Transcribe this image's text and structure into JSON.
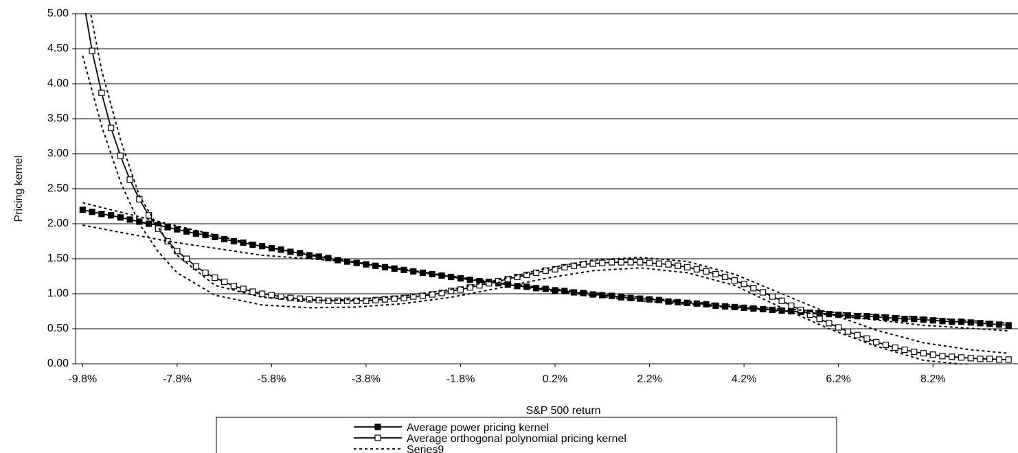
{
  "chart_data": {
    "type": "line",
    "x_label": "S&P 500 return",
    "y_label": "Pricing kernel",
    "xlim": [
      -9.95,
      10.0
    ],
    "ylim": [
      0,
      5
    ],
    "xticks": [
      {
        "value": -9.8,
        "label": "-9.8%"
      },
      {
        "value": -7.8,
        "label": "-7.8%"
      },
      {
        "value": -5.8,
        "label": "-5.8%"
      },
      {
        "value": -3.8,
        "label": "-3.8%"
      },
      {
        "value": -1.8,
        "label": "-1.8%"
      },
      {
        "value": 0.2,
        "label": "0.2%"
      },
      {
        "value": 2.2,
        "label": "2.2%"
      },
      {
        "value": 4.2,
        "label": "4.2%"
      },
      {
        "value": 6.2,
        "label": "6.2%"
      },
      {
        "value": 8.2,
        "label": "8.2%"
      }
    ],
    "yticks": [
      {
        "value": 0,
        "label": "0.00"
      },
      {
        "value": 0.5,
        "label": "0.50"
      },
      {
        "value": 1,
        "label": "1.00"
      },
      {
        "value": 1.5,
        "label": "1.50"
      },
      {
        "value": 2,
        "label": "2.00"
      },
      {
        "value": 2.5,
        "label": "2.50"
      },
      {
        "value": 3,
        "label": "3.00"
      },
      {
        "value": 3.5,
        "label": "3.50"
      },
      {
        "value": 4,
        "label": "4.00"
      },
      {
        "value": 4.5,
        "label": "4.50"
      },
      {
        "value": 5,
        "label": "5.00"
      }
    ],
    "grid": true,
    "x": [
      -9.8,
      -9.6,
      -9.4,
      -9.2,
      -9.0,
      -8.8,
      -8.6,
      -8.4,
      -8.2,
      -8.0,
      -7.8,
      -7.6,
      -7.4,
      -7.2,
      -7.0,
      -6.8,
      -6.6,
      -6.4,
      -6.2,
      -6.0,
      -5.8,
      -5.6,
      -5.4,
      -5.2,
      -5.0,
      -4.8,
      -4.6,
      -4.4,
      -4.2,
      -4.0,
      -3.8,
      -3.6,
      -3.4,
      -3.2,
      -3.0,
      -2.8,
      -2.6,
      -2.4,
      -2.2,
      -2.0,
      -1.8,
      -1.6,
      -1.4,
      -1.2,
      -1.0,
      -0.8,
      -0.6,
      -0.4,
      -0.2,
      0.0,
      0.2,
      0.4,
      0.6,
      0.8,
      1.0,
      1.2,
      1.4,
      1.6,
      1.8,
      2.0,
      2.2,
      2.4,
      2.6,
      2.8,
      3.0,
      3.2,
      3.4,
      3.6,
      3.8,
      4.0,
      4.2,
      4.4,
      4.6,
      4.8,
      5.0,
      5.2,
      5.4,
      5.6,
      5.8,
      6.0,
      6.2,
      6.4,
      6.6,
      6.8,
      7.0,
      7.2,
      7.4,
      7.6,
      7.8,
      8.0,
      8.2,
      8.4,
      8.6,
      8.8,
      9.0,
      9.2,
      9.4,
      9.6,
      9.8
    ],
    "series": [
      {
        "name": "Average power pricing kernel",
        "color": "#000000",
        "marker": "filled-square",
        "values": [
          2.2,
          2.17,
          2.14,
          2.12,
          2.09,
          2.06,
          2.03,
          2.0,
          1.98,
          1.95,
          1.92,
          1.89,
          1.86,
          1.84,
          1.81,
          1.78,
          1.75,
          1.73,
          1.7,
          1.68,
          1.65,
          1.63,
          1.6,
          1.58,
          1.55,
          1.53,
          1.51,
          1.48,
          1.46,
          1.44,
          1.42,
          1.4,
          1.38,
          1.36,
          1.34,
          1.32,
          1.3,
          1.28,
          1.26,
          1.24,
          1.22,
          1.2,
          1.18,
          1.17,
          1.15,
          1.13,
          1.11,
          1.1,
          1.08,
          1.07,
          1.05,
          1.04,
          1.02,
          1.01,
          0.99,
          0.98,
          0.97,
          0.95,
          0.94,
          0.93,
          0.92,
          0.91,
          0.89,
          0.88,
          0.87,
          0.86,
          0.85,
          0.83,
          0.82,
          0.81,
          0.8,
          0.79,
          0.78,
          0.77,
          0.76,
          0.75,
          0.74,
          0.73,
          0.72,
          0.71,
          0.7,
          0.69,
          0.68,
          0.68,
          0.67,
          0.66,
          0.65,
          0.64,
          0.64,
          0.63,
          0.62,
          0.61,
          0.6,
          0.6,
          0.59,
          0.58,
          0.57,
          0.56,
          0.55
        ]
      },
      {
        "name": "Average orthogonal polynomial pricing kernel",
        "color": "#000000",
        "marker": "open-square",
        "values": [
          5.25,
          4.47,
          3.87,
          3.37,
          2.97,
          2.63,
          2.35,
          2.12,
          1.93,
          1.75,
          1.61,
          1.5,
          1.39,
          1.3,
          1.23,
          1.17,
          1.11,
          1.07,
          1.03,
          1.0,
          0.98,
          0.96,
          0.94,
          0.93,
          0.92,
          0.91,
          0.9,
          0.9,
          0.9,
          0.9,
          0.9,
          0.91,
          0.92,
          0.93,
          0.94,
          0.96,
          0.97,
          0.99,
          1.01,
          1.04,
          1.06,
          1.09,
          1.12,
          1.15,
          1.18,
          1.21,
          1.24,
          1.27,
          1.3,
          1.33,
          1.35,
          1.38,
          1.4,
          1.42,
          1.43,
          1.44,
          1.45,
          1.45,
          1.45,
          1.45,
          1.44,
          1.43,
          1.42,
          1.4,
          1.38,
          1.35,
          1.32,
          1.28,
          1.24,
          1.19,
          1.14,
          1.08,
          1.02,
          0.96,
          0.9,
          0.83,
          0.77,
          0.7,
          0.64,
          0.58,
          0.52,
          0.46,
          0.41,
          0.36,
          0.31,
          0.27,
          0.23,
          0.2,
          0.17,
          0.15,
          0.13,
          0.11,
          0.1,
          0.09,
          0.08,
          0.07,
          0.07,
          0.06,
          0.06
        ]
      },
      {
        "name": "Series9",
        "color": "#000000",
        "style": "dashed",
        "x": [
          -9.8,
          -9.4,
          -9.0,
          -8.6,
          -8.2,
          -7.8,
          -7.0,
          -6.0,
          -5.0,
          -4.0,
          -3.0,
          -2.0,
          -1.0,
          0.0,
          1.0,
          2.0,
          3.0,
          4.0,
          5.0,
          6.0,
          7.0,
          8.0,
          9.0,
          9.8
        ],
        "values": [
          5.6,
          4.2,
          3.2,
          2.4,
          1.95,
          1.55,
          1.12,
          0.95,
          0.9,
          0.92,
          0.97,
          1.06,
          1.2,
          1.36,
          1.48,
          1.52,
          1.46,
          1.28,
          1.0,
          0.72,
          0.48,
          0.3,
          0.2,
          0.15
        ]
      },
      {
        "color": "#000000",
        "style": "dashed",
        "x": [
          -9.8,
          -9.4,
          -9.0,
          -8.6,
          -8.2,
          -7.8,
          -7.0,
          -6.0,
          -5.0,
          -4.0,
          -3.0,
          -2.0,
          -1.0,
          0.0,
          1.0,
          2.0,
          3.0,
          4.0,
          5.0,
          6.0,
          7.0,
          8.0,
          9.0,
          9.8
        ],
        "values": [
          4.4,
          3.4,
          2.6,
          2.0,
          1.6,
          1.3,
          0.98,
          0.84,
          0.8,
          0.81,
          0.86,
          0.95,
          1.08,
          1.22,
          1.33,
          1.37,
          1.3,
          1.12,
          0.8,
          0.5,
          0.25,
          0.05,
          -0.02,
          -0.02
        ]
      },
      {
        "color": "#000000",
        "style": "dashed",
        "x": [
          -9.8,
          -8.0,
          -6.0,
          -4.0,
          -2.0,
          0.0,
          2.0,
          4.0,
          6.0,
          8.0,
          9.8
        ],
        "values": [
          2.3,
          2.0,
          1.68,
          1.45,
          1.25,
          1.08,
          0.95,
          0.83,
          0.74,
          0.66,
          0.58
        ]
      },
      {
        "color": "#000000",
        "style": "dashed",
        "x": [
          -9.8,
          -8.0,
          -6.0,
          -4.0,
          -2.0,
          0.0,
          2.0,
          4.0,
          6.0,
          8.0,
          9.8
        ],
        "values": [
          1.98,
          1.75,
          1.55,
          1.45,
          1.25,
          1.05,
          0.9,
          0.8,
          0.7,
          0.55,
          0.47
        ]
      }
    ]
  }
}
